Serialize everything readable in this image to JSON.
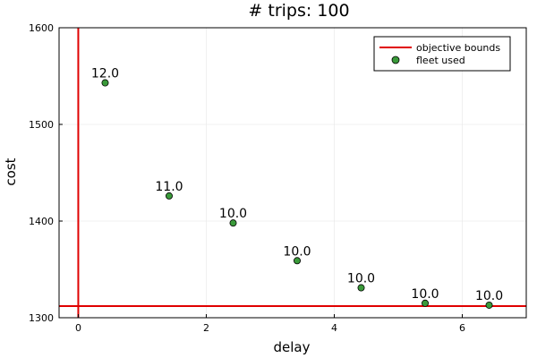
{
  "chart_data": {
    "type": "scatter",
    "title": "# trips: 100",
    "xlabel": "delay",
    "ylabel": "cost",
    "xlim": [
      -0.3,
      7.0
    ],
    "ylim": [
      1300,
      1600
    ],
    "xticks": [
      0,
      2,
      4,
      6
    ],
    "yticks": [
      1300,
      1400,
      1500,
      1600
    ],
    "grid": true,
    "legend_position": "top-right",
    "series": [
      {
        "name": "fleet used",
        "color": "#3a9a3a",
        "x": [
          0.42,
          1.42,
          2.42,
          3.42,
          4.42,
          5.42,
          6.42
        ],
        "y": [
          1543,
          1426,
          1398,
          1359,
          1331,
          1315,
          1313
        ],
        "labels": [
          "12.0",
          "11.0",
          "10.0",
          "10.0",
          "10.0",
          "10.0",
          "10.0"
        ]
      }
    ],
    "bounds": {
      "name": "objective bounds",
      "color": "#e00000",
      "x": 0,
      "y": 1312
    }
  }
}
